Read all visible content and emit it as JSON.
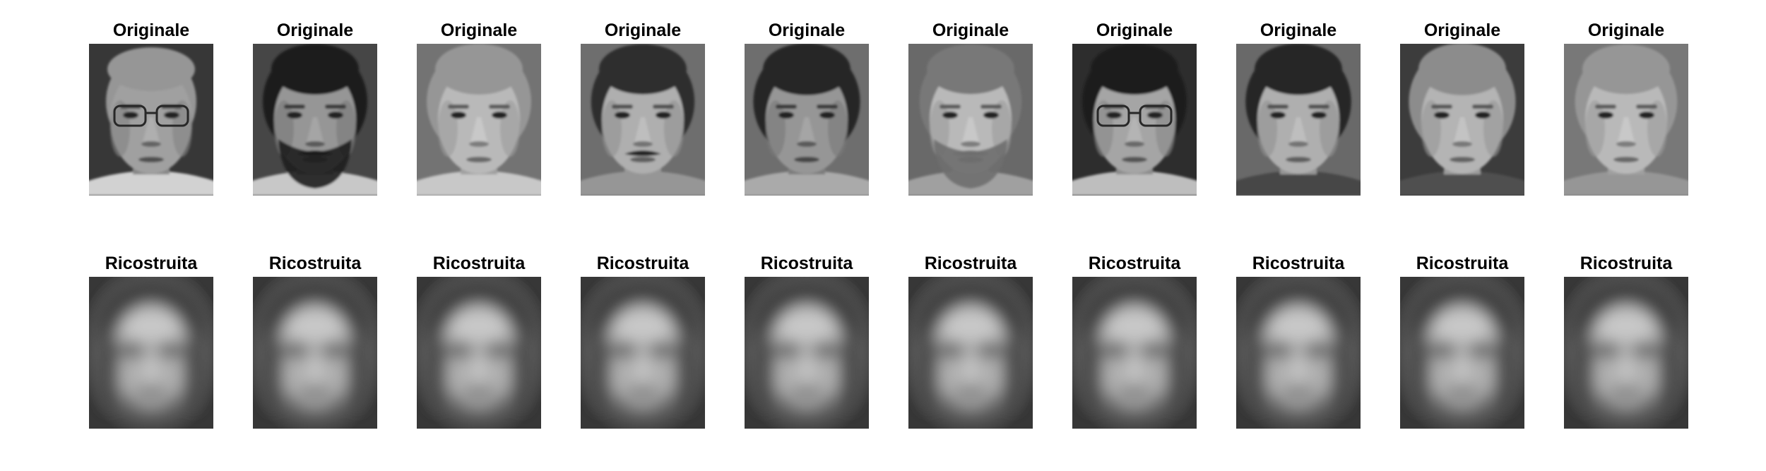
{
  "figure": {
    "background": "#ffffff",
    "rows": [
      {
        "kind": "original",
        "panels": [
          {
            "title": "Originale",
            "bg": 55,
            "skin": 160,
            "hair": 150,
            "hair_extent": 0.05,
            "glasses": true,
            "beard": false,
            "mustache": false,
            "shirt": 210
          },
          {
            "title": "Originale",
            "bg": 70,
            "skin": 150,
            "hair": 30,
            "hair_extent": 0.3,
            "glasses": false,
            "beard": true,
            "mustache": true,
            "shirt": 200
          },
          {
            "title": "Originale",
            "bg": 115,
            "skin": 185,
            "hair": 150,
            "hair_extent": 0.3,
            "glasses": false,
            "beard": false,
            "mustache": false,
            "shirt": 200
          },
          {
            "title": "Originale",
            "bg": 110,
            "skin": 175,
            "hair": 45,
            "hair_extent": 0.28,
            "glasses": false,
            "beard": false,
            "mustache": true,
            "shirt": 150
          },
          {
            "title": "Originale",
            "bg": 110,
            "skin": 150,
            "hair": 40,
            "hair_extent": 0.34,
            "glasses": false,
            "beard": false,
            "mustache": false,
            "shirt": 170
          },
          {
            "title": "Originale",
            "bg": 105,
            "skin": 185,
            "hair": 120,
            "hair_extent": 0.26,
            "glasses": false,
            "beard": true,
            "mustache": true,
            "shirt": 160
          },
          {
            "title": "Originale",
            "bg": 45,
            "skin": 165,
            "hair": 30,
            "hair_extent": 0.3,
            "glasses": true,
            "beard": false,
            "mustache": false,
            "shirt": 190
          },
          {
            "title": "Originale",
            "bg": 105,
            "skin": 175,
            "hair": 40,
            "hair_extent": 0.32,
            "glasses": false,
            "beard": false,
            "mustache": false,
            "shirt": 70
          },
          {
            "title": "Originale",
            "bg": 60,
            "skin": 180,
            "hair": 140,
            "hair_extent": 0.34,
            "glasses": false,
            "beard": false,
            "mustache": false,
            "shirt": 80
          },
          {
            "title": "Originale",
            "bg": 120,
            "skin": 185,
            "hair": 150,
            "hair_extent": 0.26,
            "glasses": false,
            "beard": false,
            "mustache": false,
            "shirt": 150
          }
        ]
      },
      {
        "kind": "reconstructed",
        "panels": [
          {
            "title": "Ricostruita",
            "bg": 55,
            "face": 175
          },
          {
            "title": "Ricostruita",
            "bg": 55,
            "face": 175
          },
          {
            "title": "Ricostruita",
            "bg": 55,
            "face": 175
          },
          {
            "title": "Ricostruita",
            "bg": 55,
            "face": 175
          },
          {
            "title": "Ricostruita",
            "bg": 55,
            "face": 175
          },
          {
            "title": "Ricostruita",
            "bg": 55,
            "face": 175
          },
          {
            "title": "Ricostruita",
            "bg": 55,
            "face": 175
          },
          {
            "title": "Ricostruita",
            "bg": 55,
            "face": 175
          },
          {
            "title": "Ricostruita",
            "bg": 55,
            "face": 175
          },
          {
            "title": "Ricostruita",
            "bg": 55,
            "face": 175
          }
        ]
      }
    ]
  }
}
